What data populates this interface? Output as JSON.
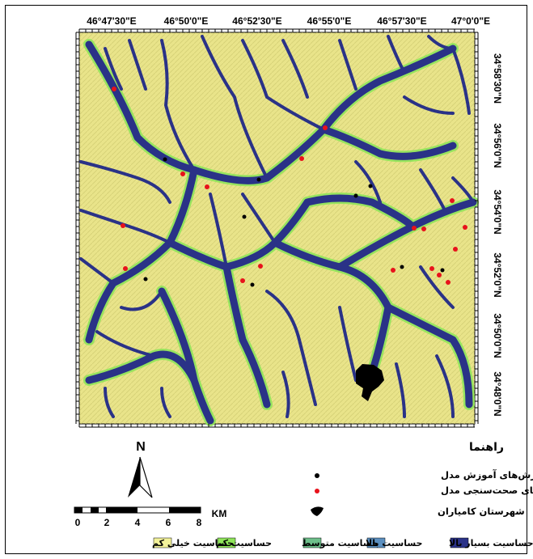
{
  "map": {
    "lon_labels": [
      "46°47'30\"E",
      "46°50'0\"E",
      "46°52'30\"E",
      "46°55'0\"E",
      "46°57'30\"E",
      "47°0'0\"E"
    ],
    "lat_labels": [
      "34°58'30\"N",
      "34°56'0\"N",
      "34°54'0\"N",
      "34°52'0\"N",
      "34°50'0\"N",
      "34°48'0\"N"
    ],
    "north_label": "N",
    "scale_unit": "KM",
    "scale_ticks": [
      "0",
      "2",
      "4",
      "6",
      "8"
    ]
  },
  "legend": {
    "title": "راهنما",
    "points": [
      {
        "label": "لغزش‌های آموزش مدل",
        "color": "#000000"
      },
      {
        "label": "لغزش‌های صحت‌سنجی مدل",
        "color": "#e8121b"
      },
      {
        "label": "شهرستان کامیاران",
        "color": "#000000"
      }
    ],
    "classes": [
      {
        "label": "حساسیت بسیار بالا",
        "color": "#2a3287"
      },
      {
        "label": "حساسیت بالا",
        "color": "#5b8fbf"
      },
      {
        "label": "حساسیت متوسط",
        "color": "#6dbf8a"
      },
      {
        "label": "حساسیت کم",
        "color": "#8fe55a"
      },
      {
        "label": "حساسیت خیلی کم",
        "color": "#f3f29a"
      }
    ]
  }
}
